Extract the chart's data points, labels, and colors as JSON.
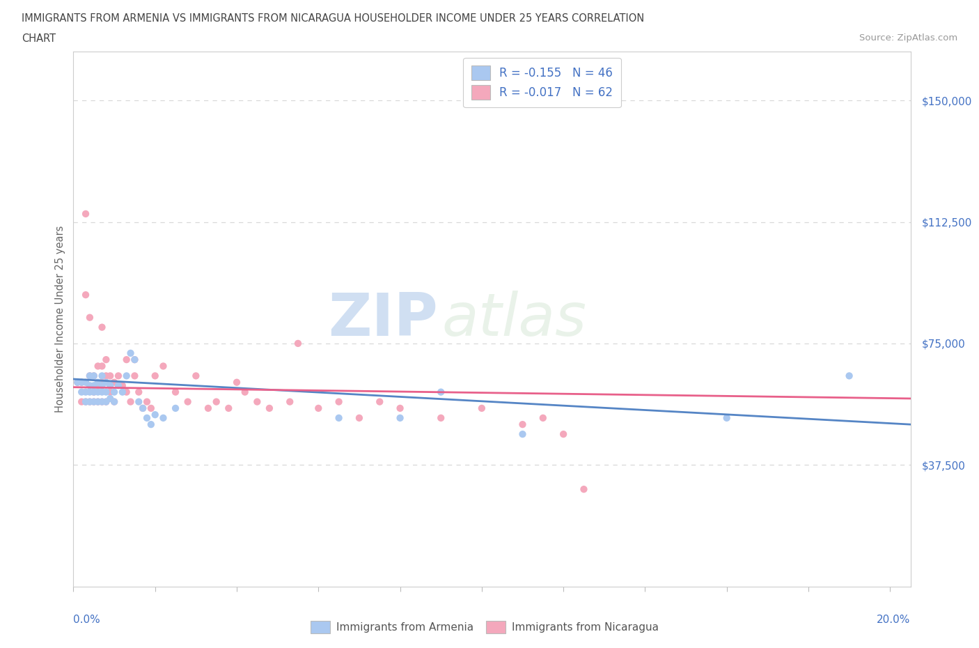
{
  "title_line1": "IMMIGRANTS FROM ARMENIA VS IMMIGRANTS FROM NICARAGUA HOUSEHOLDER INCOME UNDER 25 YEARS CORRELATION",
  "title_line2": "CHART",
  "source_text": "Source: ZipAtlas.com",
  "ylabel": "Householder Income Under 25 years",
  "color_armenia": "#aac8f0",
  "color_nicaragua": "#f4a8bc",
  "color_blue": "#4472c4",
  "color_blue_line": "#5585c5",
  "color_pink_line": "#e8608a",
  "ytick_labels": [
    "$37,500",
    "$75,000",
    "$112,500",
    "$150,000"
  ],
  "ytick_values": [
    37500,
    75000,
    112500,
    150000
  ],
  "ymin": 0,
  "ymax": 165000,
  "xmin": 0.0,
  "xmax": 0.205,
  "armenia_x": [
    0.001,
    0.002,
    0.002,
    0.003,
    0.003,
    0.003,
    0.004,
    0.004,
    0.004,
    0.004,
    0.005,
    0.005,
    0.005,
    0.005,
    0.006,
    0.006,
    0.006,
    0.007,
    0.007,
    0.007,
    0.007,
    0.008,
    0.008,
    0.008,
    0.009,
    0.009,
    0.01,
    0.01,
    0.011,
    0.012,
    0.013,
    0.014,
    0.015,
    0.016,
    0.017,
    0.018,
    0.019,
    0.02,
    0.022,
    0.025,
    0.065,
    0.08,
    0.09,
    0.11,
    0.16,
    0.19
  ],
  "armenia_y": [
    63000,
    63000,
    60000,
    63000,
    60000,
    57000,
    65000,
    62000,
    60000,
    57000,
    65000,
    62000,
    60000,
    57000,
    63000,
    60000,
    57000,
    65000,
    62000,
    60000,
    57000,
    63000,
    60000,
    57000,
    62000,
    58000,
    60000,
    57000,
    62000,
    60000,
    65000,
    72000,
    70000,
    57000,
    55000,
    52000,
    50000,
    53000,
    52000,
    55000,
    52000,
    52000,
    60000,
    47000,
    52000,
    65000
  ],
  "nicaragua_x": [
    0.001,
    0.002,
    0.002,
    0.003,
    0.003,
    0.003,
    0.004,
    0.004,
    0.004,
    0.005,
    0.005,
    0.005,
    0.006,
    0.006,
    0.006,
    0.007,
    0.007,
    0.007,
    0.007,
    0.008,
    0.008,
    0.008,
    0.009,
    0.009,
    0.01,
    0.01,
    0.011,
    0.012,
    0.013,
    0.013,
    0.014,
    0.015,
    0.015,
    0.016,
    0.017,
    0.018,
    0.019,
    0.02,
    0.022,
    0.025,
    0.028,
    0.03,
    0.033,
    0.035,
    0.038,
    0.04,
    0.042,
    0.045,
    0.048,
    0.053,
    0.055,
    0.06,
    0.065,
    0.07,
    0.075,
    0.08,
    0.09,
    0.1,
    0.11,
    0.115,
    0.12,
    0.125
  ],
  "nicaragua_y": [
    63000,
    63000,
    57000,
    115000,
    90000,
    57000,
    83000,
    65000,
    57000,
    65000,
    60000,
    57000,
    68000,
    62000,
    57000,
    80000,
    68000,
    63000,
    57000,
    70000,
    65000,
    57000,
    65000,
    60000,
    63000,
    57000,
    65000,
    62000,
    70000,
    60000,
    57000,
    70000,
    65000,
    60000,
    55000,
    57000,
    55000,
    65000,
    68000,
    60000,
    57000,
    65000,
    55000,
    57000,
    55000,
    63000,
    60000,
    57000,
    55000,
    57000,
    75000,
    55000,
    57000,
    52000,
    57000,
    55000,
    52000,
    55000,
    50000,
    52000,
    47000,
    30000
  ],
  "trendline_armenia": [
    0.0,
    64000,
    0.205,
    50000
  ],
  "trendline_nicaragua": [
    0.0,
    61500,
    0.205,
    58000
  ],
  "watermark_zip": "ZIP",
  "watermark_atlas": "atlas",
  "background_color": "#ffffff",
  "grid_color": "#d8d8d8",
  "legend_label1": "R = -0.155   N = 46",
  "legend_label2": "R = -0.017   N = 62",
  "bottom_legend1": "Immigrants from Armenia",
  "bottom_legend2": "Immigrants from Nicaragua"
}
